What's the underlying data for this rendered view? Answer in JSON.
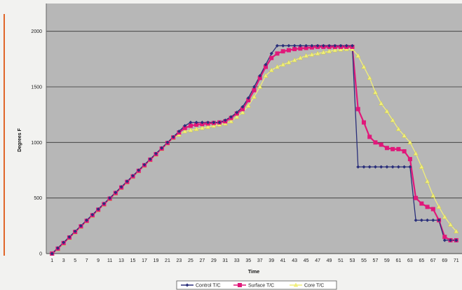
{
  "chart_data": {
    "type": "line",
    "title": "",
    "xlabel": "Time",
    "ylabel": "Degrees F",
    "ylim": [
      0,
      2250
    ],
    "y_ticks": [
      0,
      500,
      1000,
      1500,
      2000
    ],
    "x_tick_labels": [
      "1",
      "3",
      "5",
      "7",
      "9",
      "11",
      "13",
      "15",
      "17",
      "19",
      "21",
      "23",
      "25",
      "27",
      "29",
      "31",
      "33",
      "35",
      "37",
      "39",
      "41",
      "43",
      "45",
      "47",
      "49",
      "51",
      "53",
      "55",
      "57",
      "59",
      "61",
      "63",
      "65",
      "67",
      "69",
      "71"
    ],
    "grid": true,
    "legend_position": "bottom",
    "x": [
      1,
      2,
      3,
      4,
      5,
      6,
      7,
      8,
      9,
      10,
      11,
      12,
      13,
      14,
      15,
      16,
      17,
      18,
      19,
      20,
      21,
      22,
      23,
      24,
      25,
      26,
      27,
      28,
      29,
      30,
      31,
      32,
      33,
      34,
      35,
      36,
      37,
      38,
      39,
      40,
      41,
      42,
      43,
      44,
      45,
      46,
      47,
      48,
      49,
      50,
      51,
      52,
      53,
      54,
      55,
      56,
      57,
      58,
      59,
      60,
      61,
      62,
      63,
      64,
      65,
      66,
      67,
      68,
      69,
      70,
      71
    ],
    "series": [
      {
        "name": "Control T/C",
        "color": "#2a2f7a",
        "marker": "diamond",
        "values": [
          0,
          50,
          100,
          150,
          200,
          250,
          300,
          350,
          400,
          450,
          500,
          550,
          600,
          650,
          700,
          750,
          800,
          850,
          900,
          950,
          1000,
          1050,
          1100,
          1150,
          1180,
          1180,
          1180,
          1180,
          1180,
          1180,
          1200,
          1230,
          1270,
          1320,
          1400,
          1500,
          1600,
          1700,
          1800,
          1870,
          1870,
          1870,
          1870,
          1870,
          1870,
          1870,
          1870,
          1870,
          1870,
          1870,
          1870,
          1870,
          1870,
          780,
          780,
          780,
          780,
          780,
          780,
          780,
          780,
          780,
          780,
          300,
          300,
          300,
          300,
          300,
          120,
          120,
          120
        ]
      },
      {
        "name": "Surface T/C",
        "color": "#e0187a",
        "marker": "square",
        "values": [
          0,
          45,
          95,
          145,
          195,
          245,
          295,
          345,
          395,
          445,
          495,
          545,
          595,
          645,
          695,
          745,
          795,
          845,
          895,
          945,
          995,
          1045,
          1090,
          1130,
          1150,
          1160,
          1165,
          1170,
          1175,
          1180,
          1190,
          1220,
          1260,
          1300,
          1380,
          1470,
          1580,
          1680,
          1760,
          1800,
          1820,
          1830,
          1840,
          1845,
          1850,
          1855,
          1860,
          1860,
          1860,
          1860,
          1860,
          1860,
          1860,
          1300,
          1180,
          1050,
          1000,
          980,
          950,
          940,
          940,
          920,
          850,
          500,
          450,
          420,
          400,
          300,
          150,
          120,
          120
        ]
      },
      {
        "name": "Core T/C",
        "color": "#f0ee7a",
        "marker": "triangle",
        "values": [
          0,
          40,
          90,
          140,
          190,
          240,
          290,
          340,
          390,
          440,
          490,
          540,
          590,
          640,
          690,
          740,
          790,
          840,
          890,
          940,
          990,
          1040,
          1070,
          1100,
          1110,
          1120,
          1130,
          1140,
          1150,
          1160,
          1170,
          1190,
          1230,
          1270,
          1330,
          1410,
          1500,
          1600,
          1650,
          1680,
          1700,
          1720,
          1740,
          1760,
          1780,
          1790,
          1800,
          1810,
          1820,
          1830,
          1835,
          1840,
          1840,
          1780,
          1680,
          1580,
          1450,
          1350,
          1280,
          1200,
          1120,
          1060,
          1000,
          900,
          780,
          650,
          520,
          420,
          330,
          260,
          200
        ]
      }
    ]
  }
}
